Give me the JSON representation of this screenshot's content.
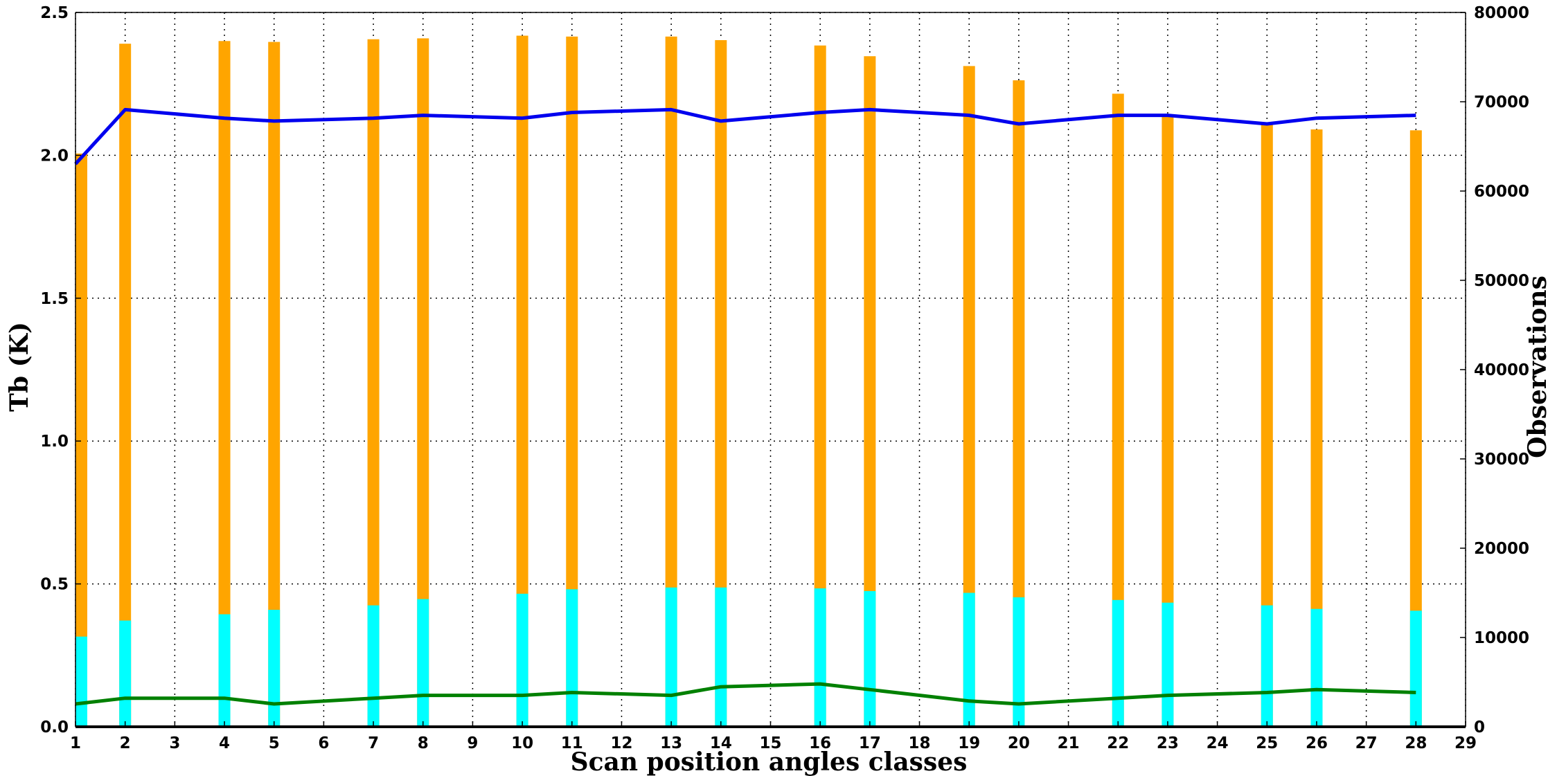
{
  "chart_data": {
    "type": "bar+line",
    "title": "",
    "xlabel": "Scan position angles classes",
    "ylabel_left": "Tb (K)",
    "ylabel_right": "Observations",
    "xlim": [
      1,
      29
    ],
    "ylim_left": [
      0,
      2.5
    ],
    "ylim_right": [
      0,
      80000
    ],
    "x_ticks": [
      "1",
      "2",
      "3",
      "4",
      "5",
      "6",
      "7",
      "8",
      "9",
      "10",
      "11",
      "12",
      "13",
      "14",
      "15",
      "16",
      "17",
      "18",
      "19",
      "20",
      "21",
      "22",
      "23",
      "24",
      "25",
      "26",
      "27",
      "28",
      "29"
    ],
    "y_ticks_left": [
      "0.0",
      "0.5",
      "1.0",
      "1.5",
      "2.0",
      "2.5"
    ],
    "y_ticks_right": [
      "0",
      "10000",
      "20000",
      "30000",
      "40000",
      "50000",
      "60000",
      "70000",
      "80000"
    ],
    "grid": true,
    "x": [
      1,
      2,
      4,
      5,
      7,
      8,
      10,
      11,
      13,
      14,
      16,
      17,
      19,
      20,
      22,
      23,
      25,
      26,
      28
    ],
    "bar_series": [
      {
        "axis": "right",
        "color": "#ffa500",
        "values": [
          64200,
          76500,
          76800,
          76700,
          77000,
          77100,
          77400,
          77300,
          77300,
          76900,
          76300,
          75100,
          74000,
          72400,
          70900,
          68600,
          67700,
          66900,
          66800
        ]
      },
      {
        "axis": "right",
        "color": "#00ffff",
        "values": [
          10100,
          11900,
          12600,
          13100,
          13600,
          14300,
          14900,
          15400,
          15600,
          15600,
          15500,
          15200,
          15000,
          14500,
          14200,
          13900,
          13600,
          13200,
          13000
        ]
      }
    ],
    "line_series": [
      {
        "axis": "left",
        "color": "#0000ee",
        "values": [
          1.97,
          2.16,
          2.13,
          2.12,
          2.13,
          2.14,
          2.13,
          2.15,
          2.16,
          2.12,
          2.15,
          2.16,
          2.14,
          2.11,
          2.14,
          2.14,
          2.11,
          2.13,
          2.14
        ]
      },
      {
        "axis": "left",
        "color": "#008000",
        "values": [
          0.08,
          0.1,
          0.1,
          0.08,
          0.1,
          0.11,
          0.11,
          0.12,
          0.11,
          0.14,
          0.15,
          0.13,
          0.09,
          0.08,
          0.1,
          0.11,
          0.12,
          0.13,
          0.12
        ]
      }
    ]
  }
}
